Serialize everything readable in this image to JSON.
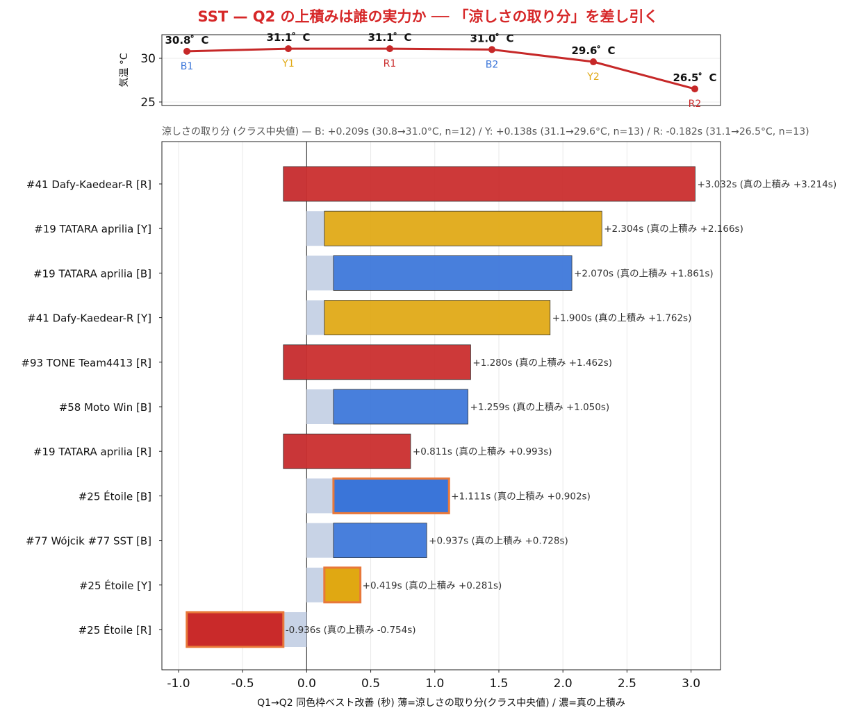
{
  "title": "SST — Q2 の上積みは誰の実力か ── 「涼しさの取り分」を差し引く",
  "subtitle": "涼しさの取り分 (クラス中央値) — B: +0.209s (30.8→31.0°C, n=12) / Y: +0.138s (31.1→29.6°C, n=13) / R: -0.182s (31.1→26.5°C, n=13)",
  "colors": {
    "B": "#3a75d9",
    "Y": "#e0a812",
    "R": "#c92a2a",
    "cool_share": "#c8d3e6",
    "highlight_edge": "#e8783a",
    "temp_line": "#c62828",
    "title": "#d62728"
  },
  "chart_data": [
    {
      "type": "line",
      "ylabel": "気温 °C",
      "ylim": [
        24.6,
        32.7
      ],
      "yticks": [
        25,
        30
      ],
      "x": [
        "B1",
        "Y1",
        "R1",
        "B2",
        "Y2",
        "R2"
      ],
      "point_colors": [
        "B",
        "Y",
        "R",
        "B",
        "Y",
        "R"
      ],
      "values": [
        30.8,
        31.1,
        31.1,
        31.0,
        29.6,
        26.5
      ],
      "value_labels": [
        "30.8゜C",
        "31.1゜C",
        "31.1゜C",
        "31.0゜C",
        "29.6゜C",
        "26.5゜C"
      ],
      "grid": true
    },
    {
      "type": "bar",
      "orientation": "horizontal",
      "xlabel": "Q1→Q2 同色枠ベスト改善 (秒)  薄=涼しさの取り分(クラス中央値) / 濃=真の上積み",
      "xlim": [
        -1.13,
        3.23
      ],
      "xticks": [
        -1.0,
        -0.5,
        0.0,
        0.5,
        1.0,
        1.5,
        2.0,
        2.5,
        3.0
      ],
      "xtick_labels": [
        "-1.0",
        "-0.5",
        "0.0",
        "0.5",
        "1.0",
        "1.5",
        "2.0",
        "2.5",
        "3.0"
      ],
      "grid": true,
      "cool_share": {
        "B": 0.209,
        "Y": 0.138,
        "R": -0.182
      },
      "rows": [
        {
          "label": "#41 Dafy-Kaedear-R  [R]",
          "class": "R",
          "total": 3.032,
          "true_gain": 3.214,
          "highlight": false,
          "annotation": "+3.032s (真の上積み +3.214s)"
        },
        {
          "label": "#19 TATARA aprilia  [Y]",
          "class": "Y",
          "total": 2.304,
          "true_gain": 2.166,
          "highlight": false,
          "annotation": "+2.304s (真の上積み +2.166s)"
        },
        {
          "label": "#19 TATARA aprilia  [B]",
          "class": "B",
          "total": 2.07,
          "true_gain": 1.861,
          "highlight": false,
          "annotation": "+2.070s (真の上積み +1.861s)"
        },
        {
          "label": "#41 Dafy-Kaedear-R  [Y]",
          "class": "Y",
          "total": 1.9,
          "true_gain": 1.762,
          "highlight": false,
          "annotation": "+1.900s (真の上積み +1.762s)"
        },
        {
          "label": "#93 TONE Team4413  [R]",
          "class": "R",
          "total": 1.28,
          "true_gain": 1.462,
          "highlight": false,
          "annotation": "+1.280s (真の上積み +1.462s)"
        },
        {
          "label": "#58 Moto Win  [B]",
          "class": "B",
          "total": 1.259,
          "true_gain": 1.05,
          "highlight": false,
          "annotation": "+1.259s (真の上積み +1.050s)"
        },
        {
          "label": "#19 TATARA aprilia  [R]",
          "class": "R",
          "total": 0.811,
          "true_gain": 0.993,
          "highlight": false,
          "annotation": "+0.811s (真の上積み +0.993s)"
        },
        {
          "label": "#25 Étoile  [B]",
          "class": "B",
          "total": 1.111,
          "true_gain": 0.902,
          "highlight": true,
          "annotation": "+1.111s (真の上積み +0.902s)"
        },
        {
          "label": "#77 Wójcik #77 SST  [B]",
          "class": "B",
          "total": 0.937,
          "true_gain": 0.728,
          "highlight": false,
          "annotation": "+0.937s (真の上積み +0.728s)"
        },
        {
          "label": "#25 Étoile  [Y]",
          "class": "Y",
          "total": 0.419,
          "true_gain": 0.281,
          "highlight": true,
          "annotation": "+0.419s (真の上積み +0.281s)"
        },
        {
          "label": "#25 Étoile  [R]",
          "class": "R",
          "total": -0.936,
          "true_gain": -0.754,
          "highlight": true,
          "annotation": "-0.936s (真の上積み -0.754s)"
        }
      ]
    }
  ]
}
